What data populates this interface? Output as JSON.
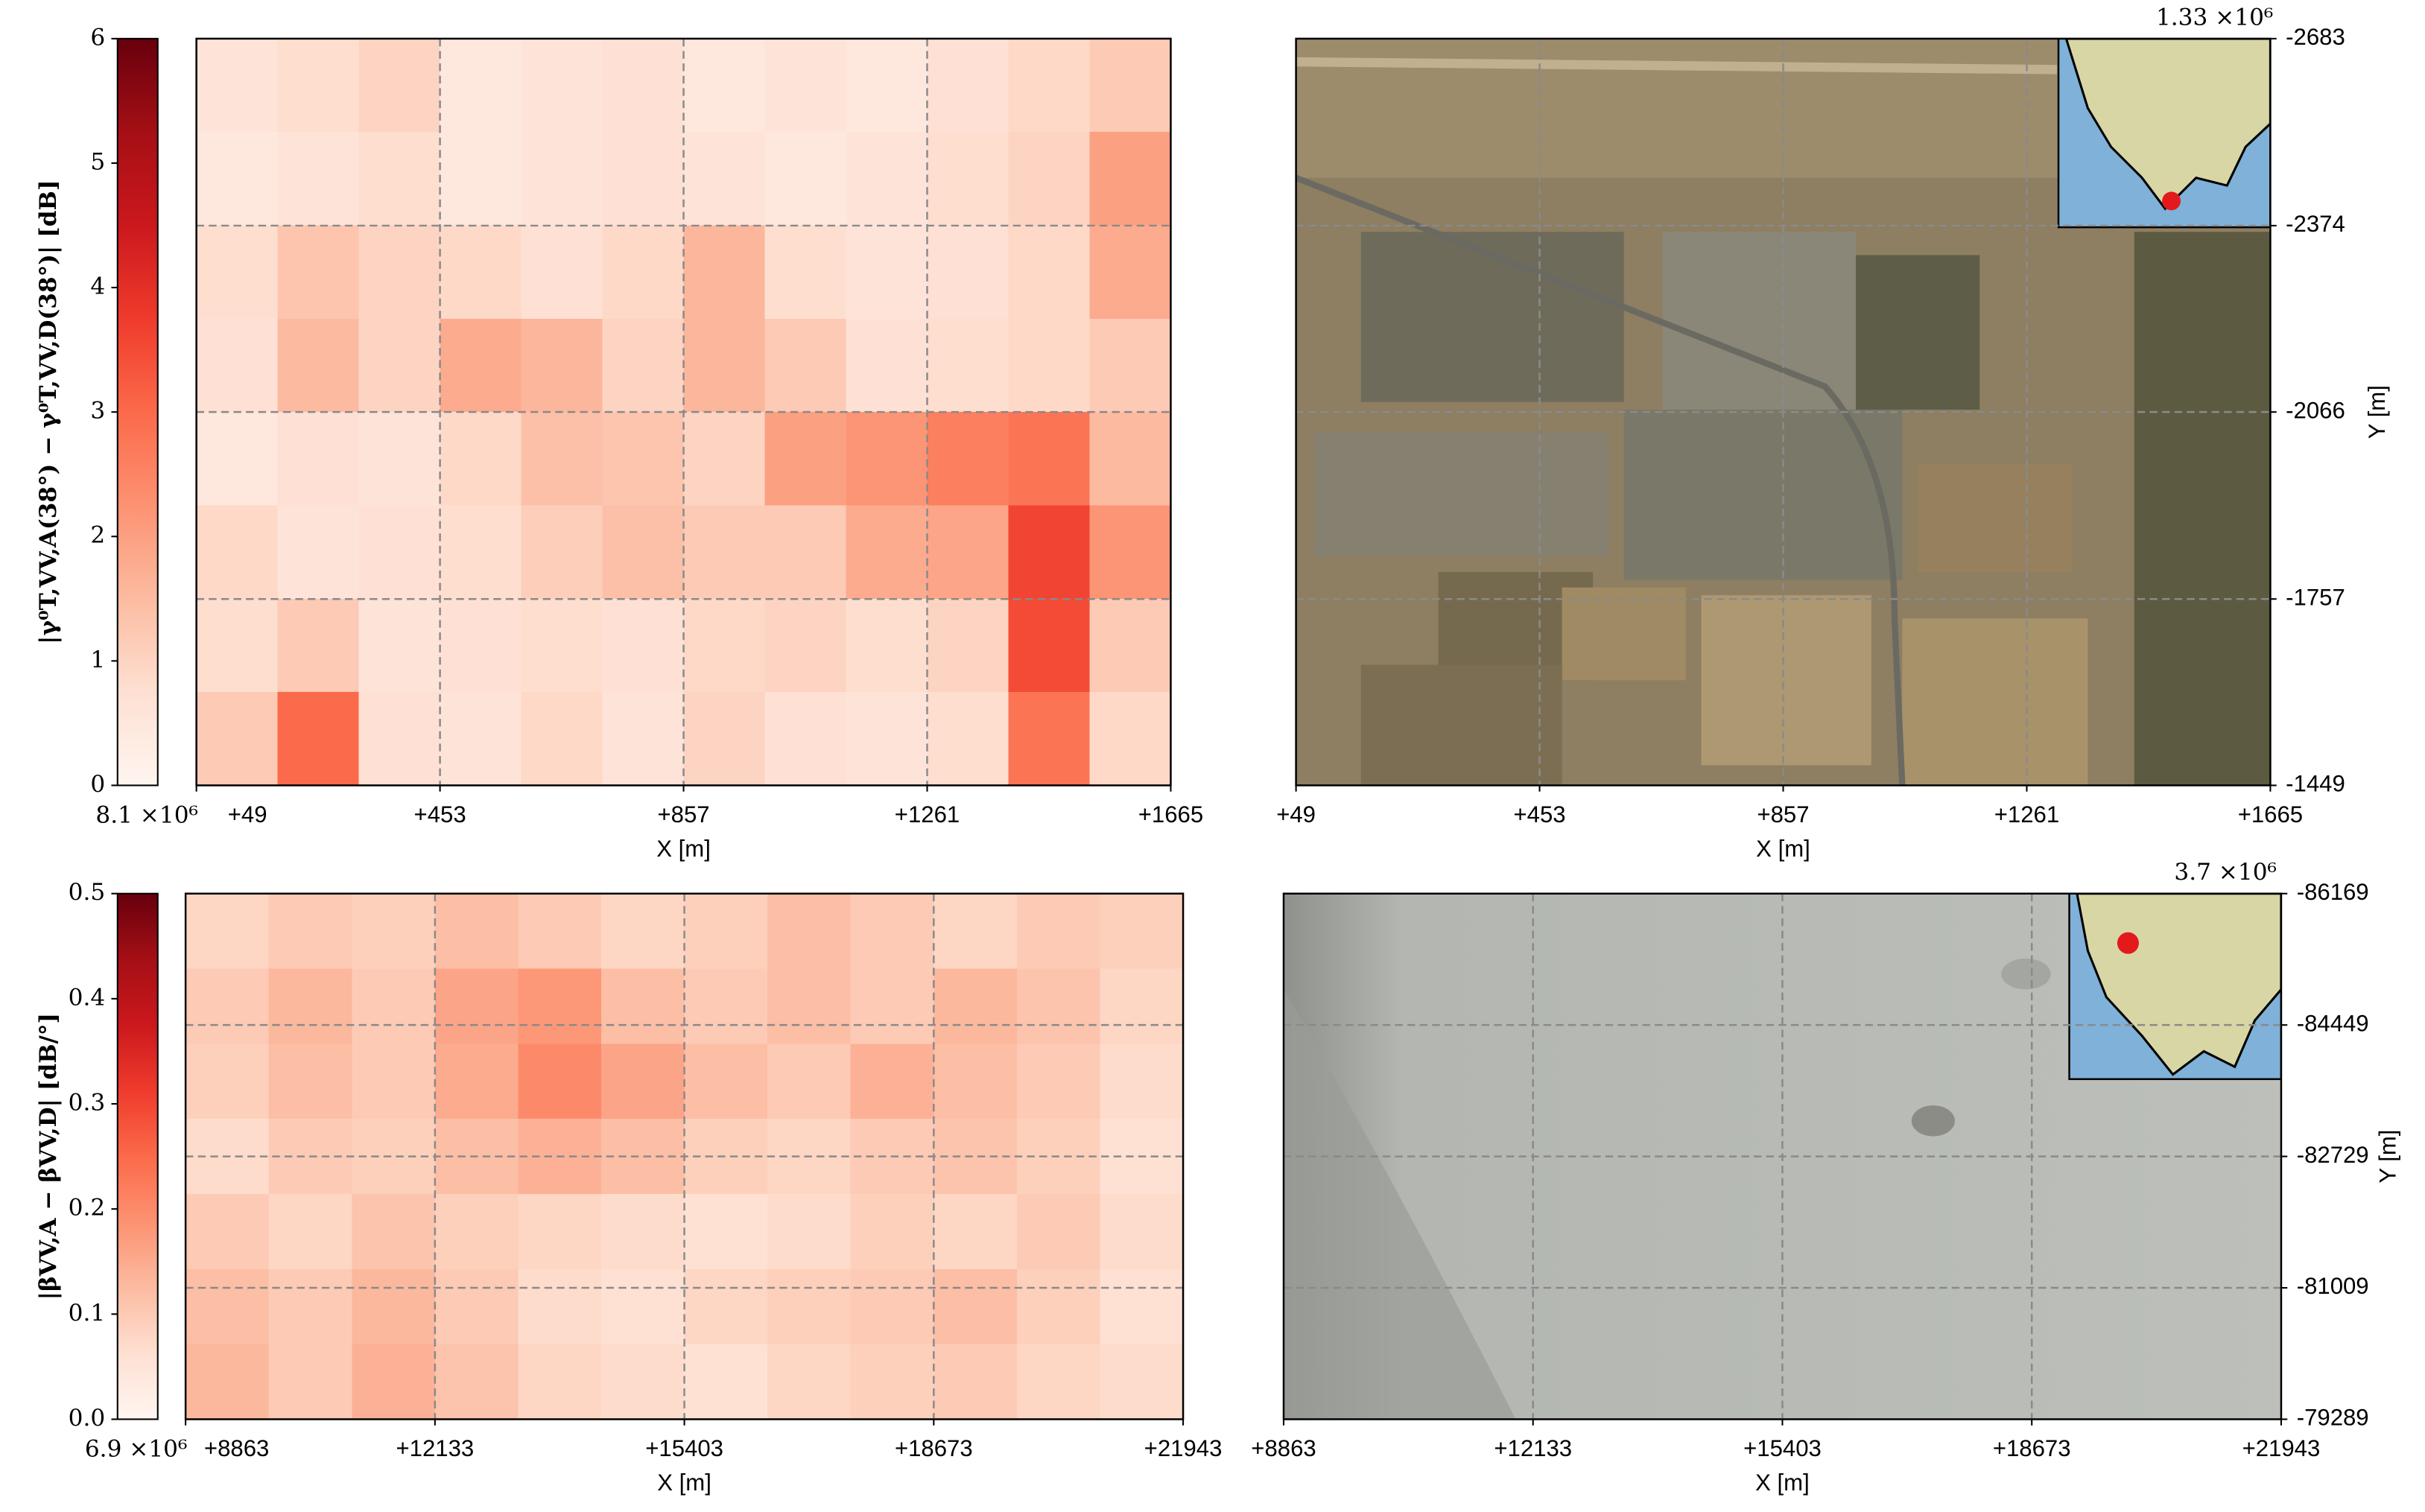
{
  "chart_data": [
    {
      "type": "heatmap",
      "colorbar_label": "|γ⁰T,VV,A(38°) − γ⁰T,VV,D(38°)| [dB]",
      "xlabel": "X [m]",
      "offset_label": "8.1 ×10⁶",
      "xlim": [
        49,
        1665
      ],
      "xticks": [
        {
          "value": 49,
          "label": "+49"
        },
        {
          "value": 453,
          "label": "+453"
        },
        {
          "value": 857,
          "label": "+857"
        },
        {
          "value": 1261,
          "label": "+1261"
        },
        {
          "value": 1665,
          "label": "+1665"
        }
      ],
      "clim": [
        0,
        6
      ],
      "cticks": [
        0,
        1,
        2,
        3,
        4,
        5,
        6
      ],
      "colormap": [
        "#fff5f0",
        "#fee0d2",
        "#fcbba1",
        "#fc9272",
        "#fb6a4a",
        "#ef3b2c",
        "#cb181d",
        "#a50f15",
        "#67000d"
      ],
      "grid": true,
      "values": [
        [
          0.6,
          0.8,
          1.0,
          0.5,
          0.6,
          0.7,
          0.5,
          0.6,
          0.5,
          0.7,
          0.9,
          1.2
        ],
        [
          0.5,
          0.6,
          0.8,
          0.5,
          0.6,
          0.7,
          0.6,
          0.5,
          0.6,
          0.8,
          1.0,
          2.0
        ],
        [
          0.8,
          1.3,
          1.0,
          0.9,
          0.7,
          0.9,
          1.6,
          0.8,
          0.6,
          0.7,
          0.9,
          1.8
        ],
        [
          0.7,
          1.5,
          1.0,
          1.8,
          1.6,
          1.0,
          1.6,
          1.2,
          0.7,
          0.8,
          0.9,
          1.2
        ],
        [
          0.5,
          0.7,
          0.6,
          0.9,
          1.4,
          1.3,
          1.0,
          2.0,
          2.2,
          2.6,
          2.8,
          1.5
        ],
        [
          0.9,
          0.6,
          0.7,
          0.8,
          1.1,
          1.4,
          1.2,
          1.2,
          1.8,
          1.9,
          3.6,
          2.2
        ],
        [
          0.8,
          1.2,
          0.6,
          0.7,
          0.8,
          0.7,
          0.9,
          1.0,
          0.8,
          1.0,
          3.5,
          1.2
        ],
        [
          1.2,
          3.0,
          0.7,
          0.6,
          0.9,
          0.6,
          1.0,
          0.7,
          0.6,
          0.8,
          2.8,
          0.9
        ]
      ]
    },
    {
      "type": "image",
      "xlabel": "X [m]",
      "ylabel": "Y [m]",
      "inset_offset_label": "1.33 ×10⁶",
      "xlim": [
        49,
        1665
      ],
      "xticks": [
        {
          "value": 49,
          "label": "+49"
        },
        {
          "value": 453,
          "label": "+453"
        },
        {
          "value": 857,
          "label": "+857"
        },
        {
          "value": 1261,
          "label": "+1261"
        },
        {
          "value": 1665,
          "label": "+1665"
        }
      ],
      "ylim": [
        -1449,
        -2683
      ],
      "yticks": [
        -2683,
        -2374,
        -2066,
        -1757,
        -1449
      ],
      "grid": true
    },
    {
      "type": "heatmap",
      "colorbar_label": "|βVV,A − βVV,D| [dB/°]",
      "xlabel": "X [m]",
      "offset_label": "6.9 ×10⁶",
      "xlim": [
        8863,
        21943
      ],
      "xticks": [
        {
          "value": 8863,
          "label": "+8863"
        },
        {
          "value": 12133,
          "label": "+12133"
        },
        {
          "value": 15403,
          "label": "+15403"
        },
        {
          "value": 18673,
          "label": "+18673"
        },
        {
          "value": 21943,
          "label": "+21943"
        }
      ],
      "clim": [
        0,
        0.5
      ],
      "cticks": [
        {
          "value": 0,
          "label": "0.0"
        },
        0.1,
        0.2,
        0.3,
        0.4,
        0.5
      ],
      "colormap": [
        "#fff5f0",
        "#fee0d2",
        "#fcbba1",
        "#fc9272",
        "#fb6a4a",
        "#ef3b2c",
        "#cb181d",
        "#a50f15",
        "#67000d"
      ],
      "grid": true,
      "values": [
        [
          0.08,
          0.1,
          0.09,
          0.12,
          0.1,
          0.08,
          0.09,
          0.12,
          0.1,
          0.08,
          0.1,
          0.09
        ],
        [
          0.1,
          0.13,
          0.1,
          0.16,
          0.18,
          0.12,
          0.1,
          0.12,
          0.1,
          0.13,
          0.11,
          0.08
        ],
        [
          0.09,
          0.12,
          0.1,
          0.15,
          0.2,
          0.16,
          0.12,
          0.1,
          0.14,
          0.12,
          0.1,
          0.07
        ],
        [
          0.07,
          0.1,
          0.09,
          0.12,
          0.14,
          0.12,
          0.09,
          0.08,
          0.1,
          0.11,
          0.09,
          0.06
        ],
        [
          0.1,
          0.08,
          0.11,
          0.09,
          0.08,
          0.07,
          0.06,
          0.07,
          0.09,
          0.08,
          0.1,
          0.07
        ],
        [
          0.12,
          0.1,
          0.13,
          0.1,
          0.07,
          0.06,
          0.08,
          0.09,
          0.1,
          0.12,
          0.09,
          0.06
        ],
        [
          0.13,
          0.1,
          0.14,
          0.11,
          0.08,
          0.07,
          0.06,
          0.08,
          0.09,
          0.1,
          0.08,
          0.07
        ]
      ]
    },
    {
      "type": "image",
      "xlabel": "X [m]",
      "ylabel": "Y [m]",
      "inset_offset_label": "3.7 ×10⁶",
      "xlim": [
        8863,
        21943
      ],
      "xticks": [
        {
          "value": 8863,
          "label": "+8863"
        },
        {
          "value": 12133,
          "label": "+12133"
        },
        {
          "value": 15403,
          "label": "+15403"
        },
        {
          "value": 18673,
          "label": "+18673"
        },
        {
          "value": 21943,
          "label": "+21943"
        }
      ],
      "ylim": [
        -79289,
        -86169
      ],
      "yticks": [
        -86169,
        -84449,
        -82729,
        -81009,
        -79289
      ],
      "grid": true
    }
  ]
}
